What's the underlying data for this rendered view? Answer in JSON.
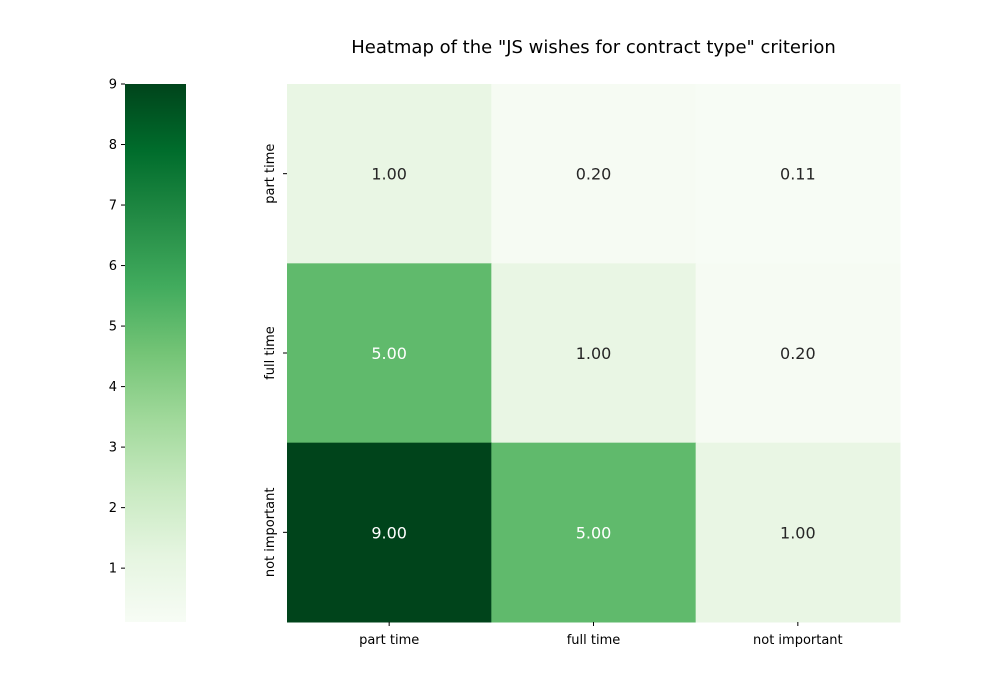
{
  "chart_data": {
    "type": "heatmap",
    "title": "Heatmap of the \"JS wishes for contract type\" criterion",
    "xlabel": "",
    "ylabel": "",
    "x_categories": [
      "part time",
      "full time",
      "not important"
    ],
    "y_categories": [
      "part time",
      "full time",
      "not important"
    ],
    "values": [
      [
        1.0,
        0.2,
        0.11
      ],
      [
        5.0,
        1.0,
        0.2
      ],
      [
        9.0,
        5.0,
        1.0
      ]
    ],
    "value_labels": [
      [
        "1.00",
        "0.20",
        "0.11"
      ],
      [
        "5.00",
        "1.00",
        "0.20"
      ],
      [
        "9.00",
        "5.00",
        "1.00"
      ]
    ],
    "colormap": "Greens",
    "color_range": [
      0.11,
      9.0
    ],
    "colorbar": {
      "placement": "left",
      "ticks": [
        1,
        2,
        3,
        4,
        5,
        6,
        7,
        8,
        9
      ]
    },
    "colors": {
      "low": "#f7fcf5",
      "high": "#00441b"
    }
  }
}
